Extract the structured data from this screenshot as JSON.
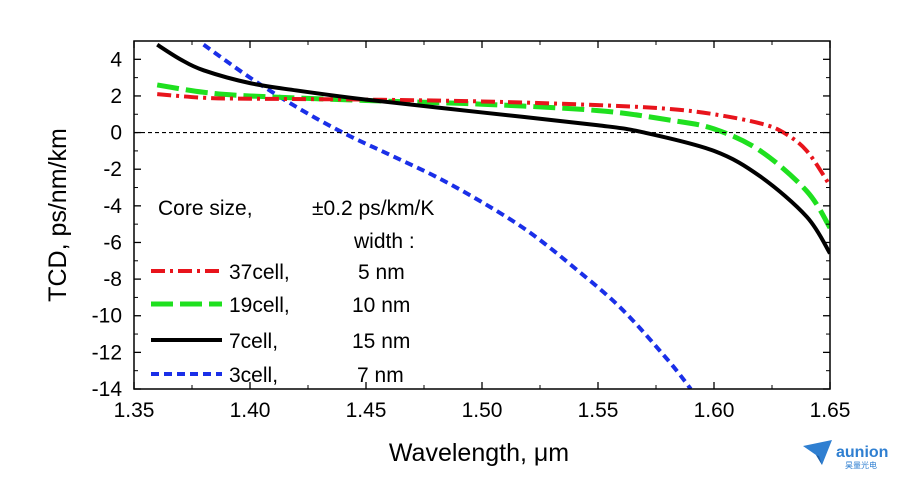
{
  "chart_data": {
    "type": "line",
    "xlabel": "Wavelength, μm",
    "ylabel": "TCD, ps/nm/km",
    "xlim": [
      1.35,
      1.65
    ],
    "ylim": [
      -14,
      5
    ],
    "x_ticks": [
      "1.35",
      "1.40",
      "1.45",
      "1.50",
      "1.55",
      "1.60",
      "1.65"
    ],
    "x_tick_values": [
      1.35,
      1.4,
      1.45,
      1.5,
      1.55,
      1.6,
      1.65
    ],
    "y_ticks": [
      "4",
      "2",
      "0",
      "-2",
      "-4",
      "-6",
      "-8",
      "-10",
      "-12",
      "-14"
    ],
    "y_tick_values": [
      4,
      2,
      0,
      -2,
      -4,
      -6,
      -8,
      -10,
      -12,
      -14
    ],
    "zero_line": true,
    "grid": false,
    "legend_header": {
      "col1": "Core size,",
      "col2_line1": "±0.2 ps/km/K",
      "col2_line2": "width :"
    },
    "legend_position": "lower-left",
    "series": [
      {
        "name": "37cell,",
        "width_label": "5 nm",
        "color": "#e8141c",
        "style": "dash-dot",
        "x": [
          1.36,
          1.38,
          1.4,
          1.45,
          1.5,
          1.55,
          1.58,
          1.6,
          1.62,
          1.63,
          1.64,
          1.65
        ],
        "y": [
          2.1,
          1.9,
          1.85,
          1.8,
          1.7,
          1.5,
          1.3,
          1.0,
          0.5,
          0.0,
          -1.0,
          -2.9
        ]
      },
      {
        "name": "19cell,",
        "width_label": "10 nm",
        "color": "#1fe01f",
        "style": "long-dash",
        "x": [
          1.36,
          1.38,
          1.4,
          1.45,
          1.5,
          1.55,
          1.58,
          1.6,
          1.62,
          1.64,
          1.65
        ],
        "y": [
          2.6,
          2.2,
          2.0,
          1.75,
          1.55,
          1.2,
          0.7,
          0.2,
          -1.0,
          -3.2,
          -5.2
        ]
      },
      {
        "name": "7cell,",
        "width_label": "15 nm",
        "color": "#000000",
        "style": "solid",
        "x": [
          1.36,
          1.37,
          1.38,
          1.4,
          1.42,
          1.45,
          1.5,
          1.55,
          1.57,
          1.6,
          1.62,
          1.64,
          1.65
        ],
        "y": [
          4.8,
          4.0,
          3.4,
          2.7,
          2.3,
          1.8,
          1.1,
          0.4,
          0.0,
          -1.0,
          -2.4,
          -4.6,
          -6.6
        ]
      },
      {
        "name": "3cell,",
        "width_label": "7 nm",
        "color": "#1a2fe8",
        "style": "short-dash",
        "x": [
          1.38,
          1.4,
          1.42,
          1.44,
          1.46,
          1.48,
          1.5,
          1.52,
          1.54,
          1.56,
          1.58,
          1.59
        ],
        "y": [
          4.8,
          3.0,
          1.4,
          0.0,
          -1.2,
          -2.4,
          -3.8,
          -5.4,
          -7.4,
          -9.6,
          -12.4,
          -14.0
        ]
      }
    ]
  },
  "watermark": {
    "brand": "aunion",
    "sub": "昊量光电",
    "color": "#2f7fd1"
  }
}
